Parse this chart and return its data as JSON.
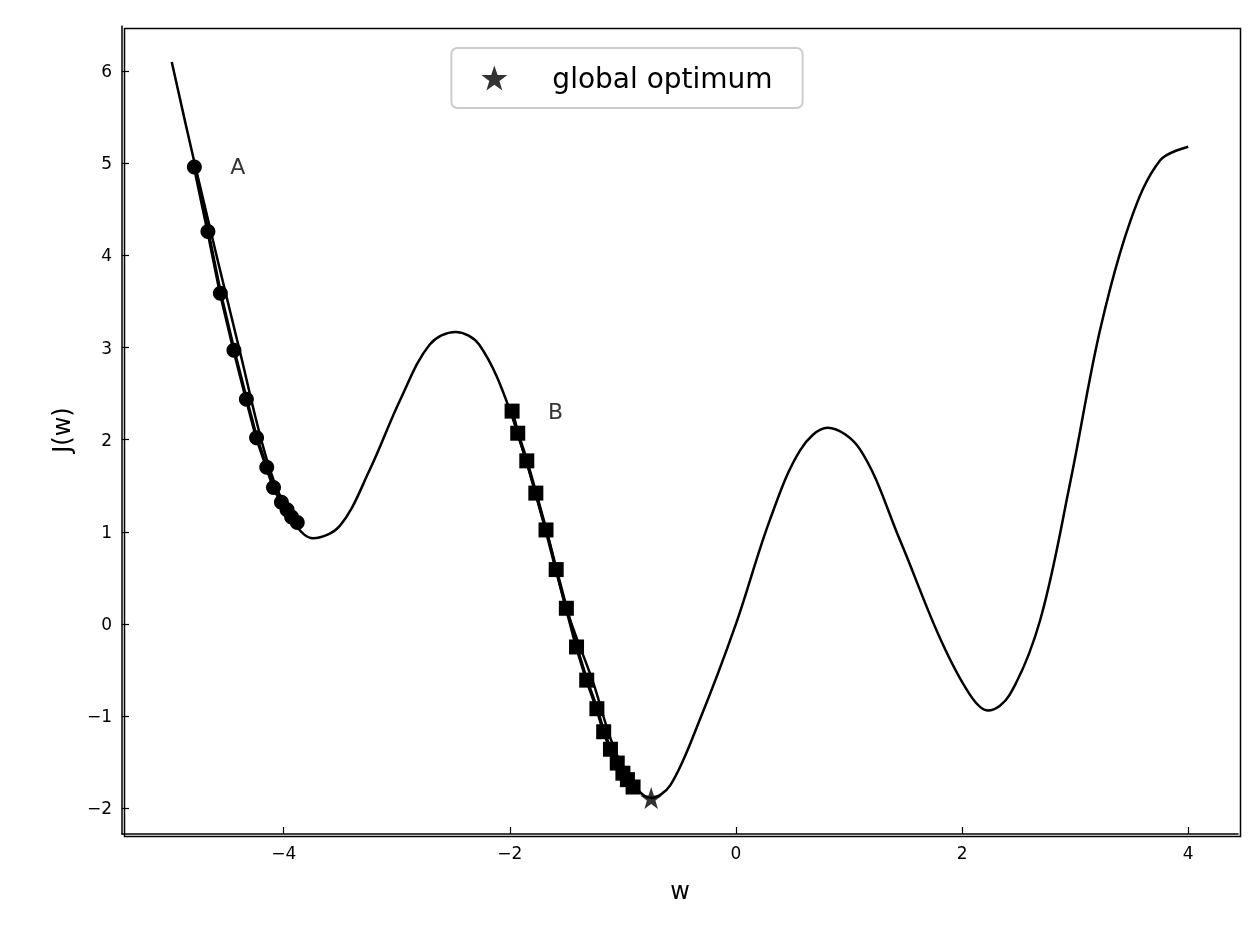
{
  "chart_data": {
    "type": "line",
    "xlabel": "w",
    "ylabel": "J(w)",
    "xlim": [
      -5.43,
      4.44
    ],
    "ylim": [
      -2.28,
      6.49
    ],
    "xticks": [
      -4,
      -2,
      0,
      2,
      4
    ],
    "yticks": [
      -2,
      -1,
      0,
      1,
      2,
      3,
      4,
      5,
      6
    ],
    "grid": false,
    "legend": "top",
    "annotations": [
      {
        "text": "A",
        "x": -4.79,
        "y": 4.96
      },
      {
        "text": "B",
        "x": -1.98,
        "y": 2.31
      }
    ],
    "series": [
      {
        "type": "line",
        "color": "#000000",
        "marker": "none",
        "x": [
          -4.99,
          -4.78,
          -4.39,
          -4.12,
          -3.89,
          -3.74,
          -3.5,
          -3.24,
          -2.97,
          -2.71,
          -2.48,
          -2.27,
          -2.0,
          -1.68,
          -1.5,
          -1.27,
          -1.03,
          -0.75,
          -0.58,
          -0.32,
          0,
          0.3,
          0.57,
          0.81,
          1.1,
          1.45,
          1.81,
          2.07,
          2.23,
          2.42,
          2.69,
          2.96,
          3.22,
          3.49,
          3.75,
          4.0
        ],
        "values": [
          6.1,
          4.96,
          2.97,
          1.67,
          1.07,
          0.93,
          1.07,
          1.67,
          2.43,
          3.03,
          3.17,
          3.03,
          2.32,
          1.02,
          0.17,
          -0.61,
          -1.48,
          -1.89,
          -1.75,
          -1.04,
          0,
          1.13,
          1.89,
          2.13,
          1.89,
          0.91,
          -0.17,
          -0.77,
          -0.94,
          -0.77,
          0.04,
          1.56,
          3.19,
          4.38,
          5.03,
          5.18
        ]
      },
      {
        "type": "line",
        "color": "#000000",
        "marker": "circle",
        "x": [
          -4.79,
          -4.67,
          -4.56,
          -4.44,
          -4.33,
          -4.24,
          -4.15,
          -4.09,
          -4.02,
          -3.97,
          -3.93,
          -3.88
        ],
        "values": [
          4.96,
          4.26,
          3.59,
          2.97,
          2.44,
          2.02,
          1.7,
          1.48,
          1.32,
          1.24,
          1.16,
          1.1
        ]
      },
      {
        "type": "line",
        "color": "#000000",
        "marker": "square",
        "x": [
          -1.98,
          -1.93,
          -1.85,
          -1.77,
          -1.68,
          -1.59,
          -1.5,
          -1.41,
          -1.32,
          -1.23,
          -1.17,
          -1.11,
          -1.05,
          -1.0,
          -0.96,
          -0.91
        ],
        "values": [
          2.31,
          2.07,
          1.77,
          1.42,
          1.02,
          0.59,
          0.17,
          -0.25,
          -0.61,
          -0.92,
          -1.17,
          -1.36,
          -1.51,
          -1.62,
          -1.69,
          -1.77
        ]
      },
      {
        "type": "scatter",
        "name": "global optimum",
        "color": "#000000",
        "marker": "star",
        "x": [
          -0.75
        ],
        "values": [
          -1.89
        ]
      }
    ]
  }
}
